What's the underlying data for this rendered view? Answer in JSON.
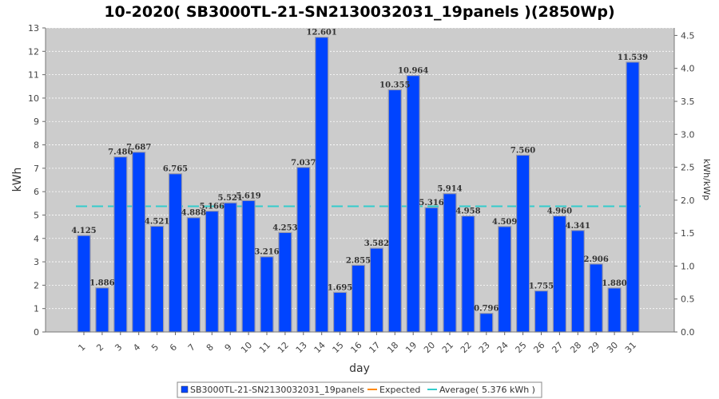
{
  "chart_data": {
    "type": "bar",
    "title": "10-2020( SB3000TL-21-SN2130032031_19panels )(2850Wp)",
    "xlabel": "day",
    "ylabel": "kWh",
    "y2label": "kWh/kWp",
    "categories": [
      "1",
      "2",
      "3",
      "4",
      "5",
      "6",
      "7",
      "8",
      "9",
      "10",
      "11",
      "12",
      "13",
      "14",
      "15",
      "16",
      "17",
      "18",
      "19",
      "20",
      "21",
      "22",
      "23",
      "24",
      "25",
      "26",
      "27",
      "28",
      "29",
      "30",
      "31"
    ],
    "series": [
      {
        "name": "SB3000TL-21-SN2130032031_19panels",
        "color": "#0044ff",
        "values": [
          4.125,
          1.886,
          7.486,
          7.687,
          4.521,
          6.765,
          4.888,
          5.166,
          5.521,
          5.619,
          3.216,
          4.253,
          7.037,
          12.601,
          1.695,
          2.855,
          3.582,
          10.355,
          10.964,
          5.316,
          5.914,
          4.958,
          0.796,
          4.509,
          7.56,
          1.755,
          4.96,
          4.341,
          2.906,
          1.88,
          11.539
        ],
        "labels": [
          "4.125",
          "1.886",
          "7.486",
          "7.687",
          "4.521",
          "6.765",
          "4.888",
          "5.166",
          "5.521",
          "5.619",
          "3.216",
          "4.253",
          "7.037",
          "12.601",
          "1.695",
          "2.855",
          "3.582",
          "10.355",
          "10.964",
          "5.316",
          "5.914",
          "4.958",
          "0.796",
          "4.509",
          "7.560",
          "1.755",
          "4.960",
          "4.341",
          "2.906",
          "1.880",
          "11.539"
        ]
      }
    ],
    "average": 5.376,
    "ylim": [
      0,
      13
    ],
    "yticks": [
      "0",
      "1",
      "2",
      "3",
      "4",
      "5",
      "6",
      "7",
      "8",
      "9",
      "10",
      "11",
      "12",
      "13"
    ],
    "y2lim": [
      0,
      4.614
    ],
    "y2ticks": [
      "0.0",
      "0.5",
      "1.0",
      "1.5",
      "2.0",
      "2.5",
      "3.0",
      "3.5",
      "4.0",
      "4.5"
    ],
    "legend": {
      "placement": "bottom",
      "items": [
        {
          "label": "SB3000TL-21-SN2130032031_19panels",
          "color": "#0044ff",
          "kind": "box"
        },
        {
          "label": "Expected",
          "color": "#ff8800",
          "kind": "line"
        },
        {
          "label": "Average( 5.376 kWh )",
          "color": "#33cccc",
          "kind": "line"
        }
      ]
    },
    "colors": {
      "plot_background": "#cccccc",
      "bar": "#0044ff",
      "average": "#33cccc",
      "expected": "#ff8800",
      "grid": "#ffffff"
    },
    "grid": true
  }
}
